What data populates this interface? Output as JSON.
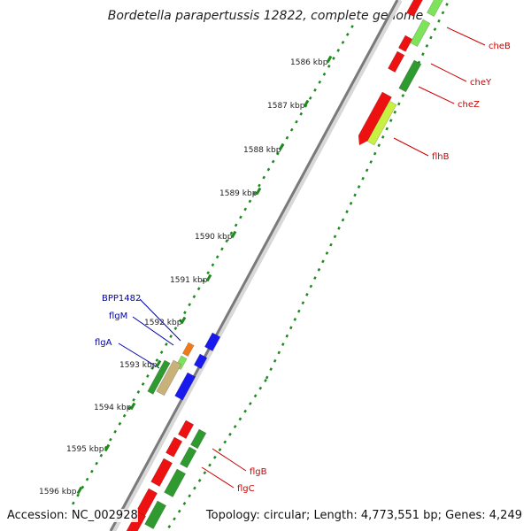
{
  "title": "Bordetella parapertussis 12822, complete genome",
  "accession": "Accession: NC_002928",
  "topology": "Topology: circular; Length: 4,773,551 bp; Genes: 4,249",
  "kbp_labels": [
    "1586 kbp",
    "1587 kbp",
    "1588 kbp",
    "1589 kbp",
    "1590 kbp",
    "1591 kbp",
    "1592 kbp",
    "1593 kbp",
    "1594 kbp",
    "1595 kbp",
    "1596 kbp"
  ],
  "gene_labels_right": [
    "cheB",
    "cheY",
    "cheZ",
    "flhB",
    "flgB",
    "flgC"
  ],
  "gene_labels_left": [
    "BPP1482",
    "flgM",
    "flgA"
  ],
  "colors": {
    "backbone": "#8c8c8c",
    "tick": "#1e8a1e",
    "gene_red": "#ee1111",
    "gene_green": "#2f9a2f",
    "gene_lightgreen": "#7de35a",
    "gene_yellowgreen": "#c8f043",
    "gene_blue": "#1a1aee",
    "gene_tan": "#c8b27a",
    "gene_orange": "#f07a1a",
    "label_red": "#cc0000",
    "label_blue": "#0000aa"
  }
}
